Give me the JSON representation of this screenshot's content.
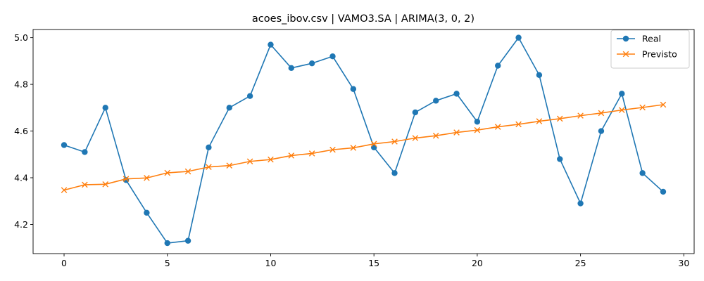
{
  "chart_data": {
    "type": "line",
    "title": "acoes_ibov.csv | VAMO3.SA | ARIMA(3, 0, 2)",
    "xlabel": "",
    "ylabel": "",
    "xlim": [
      -1.5,
      30.5
    ],
    "ylim": [
      4.075,
      5.035
    ],
    "x_ticks": [
      0,
      5,
      10,
      15,
      20,
      25,
      30
    ],
    "x_tick_labels": [
      "0",
      "5",
      "10",
      "15",
      "20",
      "25",
      "30"
    ],
    "y_ticks": [
      4.2,
      4.4,
      4.6,
      4.8,
      5.0
    ],
    "y_tick_labels": [
      "4.2",
      "4.4",
      "4.6",
      "4.8",
      "5.0"
    ],
    "grid": false,
    "legend_position": "top-right",
    "x": [
      0,
      1,
      2,
      3,
      4,
      5,
      6,
      7,
      8,
      9,
      10,
      11,
      12,
      13,
      14,
      15,
      16,
      17,
      18,
      19,
      20,
      21,
      22,
      23,
      24,
      25,
      26,
      27,
      28,
      29
    ],
    "series": [
      {
        "name": "Real",
        "color": "#1f77b4",
        "marker": "circle",
        "values": [
          4.54,
          4.51,
          4.7,
          4.39,
          4.25,
          4.12,
          4.13,
          4.53,
          4.7,
          4.75,
          4.97,
          4.87,
          4.89,
          4.92,
          4.78,
          4.53,
          4.42,
          4.68,
          4.73,
          4.76,
          4.64,
          4.88,
          5.0,
          4.84,
          4.48,
          4.29,
          4.6,
          4.76,
          4.42,
          4.34
        ]
      },
      {
        "name": "Previsto",
        "color": "#ff7f0e",
        "marker": "x",
        "values": [
          4.347,
          4.37,
          4.372,
          4.395,
          4.399,
          4.421,
          4.427,
          4.446,
          4.452,
          4.47,
          4.478,
          4.495,
          4.504,
          4.52,
          4.528,
          4.545,
          4.555,
          4.57,
          4.58,
          4.594,
          4.604,
          4.618,
          4.629,
          4.642,
          4.653,
          4.666,
          4.677,
          4.69,
          4.701,
          4.713
        ]
      }
    ]
  }
}
